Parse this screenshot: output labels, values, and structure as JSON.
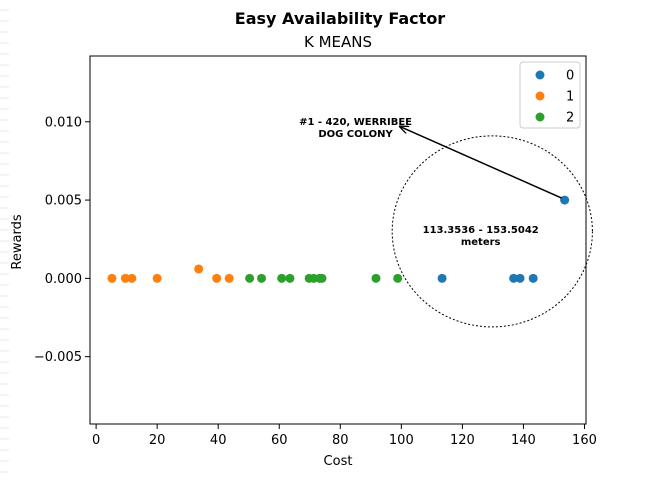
{
  "chart_data": {
    "type": "scatter",
    "title": "Easy Availability Factor",
    "subtitle": "K MEANS",
    "xlabel": "Cost",
    "ylabel": "Rewards",
    "xlim": [
      -2,
      160.5
    ],
    "ylim": [
      -0.0093,
      0.0142
    ],
    "xticks": [
      0,
      20,
      40,
      60,
      80,
      100,
      120,
      140,
      160
    ],
    "xtick_labels": [
      "0",
      "20",
      "40",
      "60",
      "80",
      "100",
      "120",
      "140",
      "160"
    ],
    "yticks": [
      -0.005,
      0.0,
      0.005,
      0.01
    ],
    "ytick_labels": [
      "−0.005",
      "0.000",
      "0.005",
      "0.010"
    ],
    "grid": false,
    "legend_position": "top-right",
    "series": [
      {
        "name": "0",
        "color": "#1f77b4",
        "points": [
          [
            113.3536,
            0.0
          ],
          [
            136.8,
            0.0
          ],
          [
            138.9,
            0.0
          ],
          [
            143.2,
            0.0
          ],
          [
            153.5042,
            0.005
          ]
        ]
      },
      {
        "name": "1",
        "color": "#ff7f0e",
        "points": [
          [
            5.2,
            0.0
          ],
          [
            9.6,
            0.0
          ],
          [
            11.7,
            0.0
          ],
          [
            20.0,
            0.0
          ],
          [
            33.6,
            0.0006
          ],
          [
            39.5,
            0.0
          ],
          [
            43.6,
            0.0
          ]
        ]
      },
      {
        "name": "2",
        "color": "#2ca02c",
        "points": [
          [
            50.3,
            0.0
          ],
          [
            54.2,
            0.0
          ],
          [
            60.8,
            0.0
          ],
          [
            63.5,
            0.0
          ],
          [
            69.8,
            0.0
          ],
          [
            71.3,
            0.0
          ],
          [
            73.2,
            0.0
          ],
          [
            74.0,
            0.0
          ],
          [
            91.7,
            0.0
          ],
          [
            98.8,
            0.0
          ]
        ]
      }
    ],
    "annotations": [
      {
        "text_lines": [
          "#1 - 420, WERRIBEE",
          "DOG COLONY"
        ],
        "arrow_from": [
          153.5,
          0.005
        ],
        "arrow_to": [
          99.5,
          0.0097
        ],
        "text_at": [
          85.0,
          0.0098
        ]
      },
      {
        "text_lines": [
          "113.3536 - 153.5042",
          "meters"
        ],
        "text_at": [
          126.0,
          0.0029
        ]
      }
    ],
    "range_ellipse": {
      "center": [
        129.8,
        0.003
      ],
      "rx_units": 32.8,
      "ry_units": 0.0061
    }
  }
}
